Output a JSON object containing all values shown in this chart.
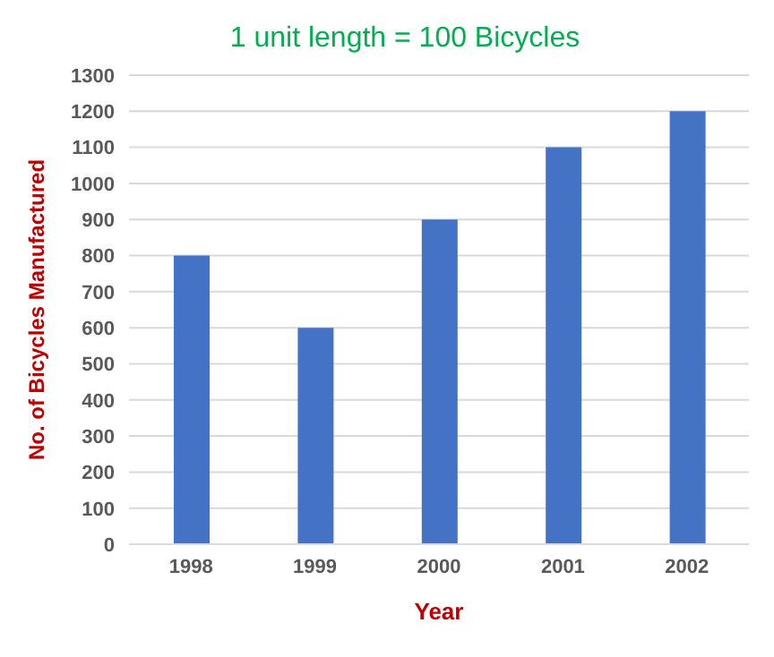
{
  "chart_data": {
    "type": "bar",
    "title": "1 unit length = 100 Bicycles",
    "xlabel": "Year",
    "ylabel": "No. of Bicycles Manufactured",
    "categories": [
      "1998",
      "1999",
      "2000",
      "2001",
      "2002"
    ],
    "values": [
      800,
      600,
      900,
      1100,
      1200
    ],
    "color": "#4472c4",
    "ylim": [
      0,
      1300
    ],
    "yticks": [
      0,
      100,
      200,
      300,
      400,
      500,
      600,
      700,
      800,
      900,
      1000,
      1100,
      1200,
      1300
    ],
    "grid": "y",
    "legend": false
  }
}
